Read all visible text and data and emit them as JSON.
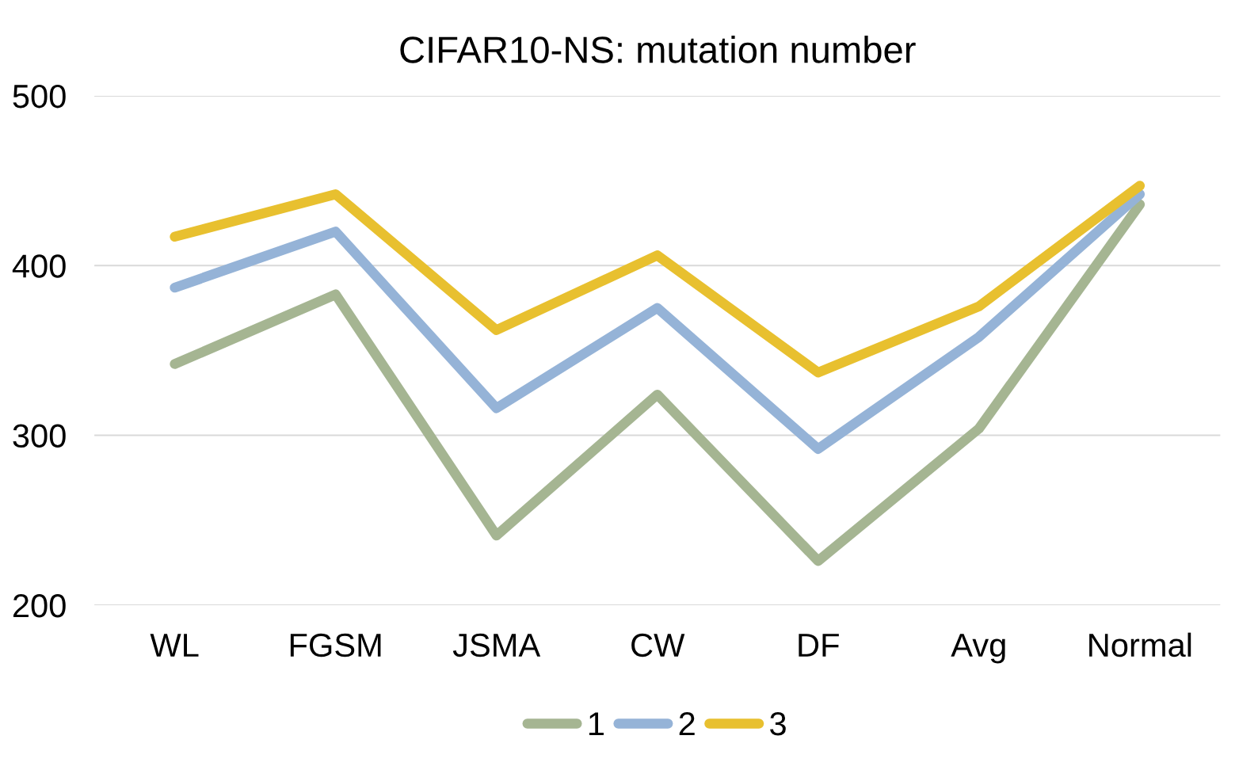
{
  "chart_data": {
    "type": "line",
    "title": "CIFAR10-NS: mutation number",
    "categories": [
      "WL",
      "FGSM",
      "JSMA",
      "CW",
      "DF",
      "Avg",
      "Normal"
    ],
    "series": [
      {
        "name": "1",
        "color": "#a5b592",
        "values": [
          342,
          383,
          241,
          324,
          226,
          304,
          436
        ]
      },
      {
        "name": "2",
        "color": "#95b3d7",
        "values": [
          387,
          420,
          316,
          375,
          292,
          358,
          442
        ]
      },
      {
        "name": "3",
        "color": "#e8c02f",
        "values": [
          417,
          442,
          362,
          406,
          337,
          376,
          447
        ]
      }
    ],
    "ylim": [
      200,
      500
    ],
    "yticks": [
      200,
      300,
      400,
      500
    ],
    "grid": "y",
    "legend": "bottom",
    "line_style": "solid"
  }
}
